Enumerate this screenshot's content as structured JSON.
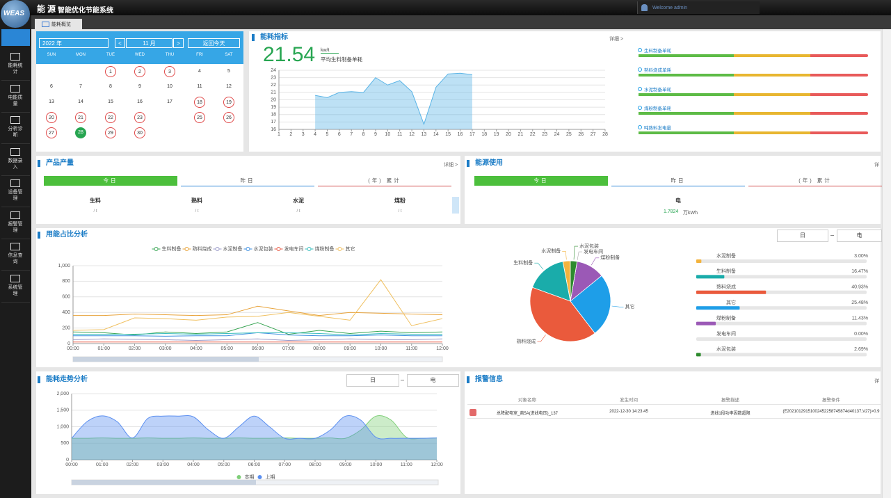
{
  "header": {
    "logo": "WEAS",
    "brand": "能源",
    "title": "智能优化节能系统",
    "welcome": "Welcome admin"
  },
  "menu": [
    "能耗统计",
    "电能质量",
    "分析诊断",
    "数据录入",
    "设备管理",
    "报警管理",
    "信息查询",
    "系统管理"
  ],
  "tab": "能耗概览",
  "calendar": {
    "year": "2022 年",
    "prev": "<",
    "month": "11 月",
    "next": ">",
    "today_button": "返回今天",
    "weekdays": [
      "SUN",
      "MON",
      "TUE",
      "WED",
      "THU",
      "FRI",
      "SAT"
    ],
    "weeks": [
      [
        null,
        null,
        {
          "label": "1",
          "ring": "#e04848"
        },
        {
          "label": "2",
          "ring": "#e04848"
        },
        {
          "label": "3",
          "ring": "#e04848"
        },
        {
          "label": "4"
        },
        {
          "label": "5"
        }
      ],
      [
        {
          "label": "6"
        },
        {
          "label": "7"
        },
        {
          "label": "8"
        },
        {
          "label": "9"
        },
        {
          "label": "10"
        },
        {
          "label": "11"
        },
        {
          "label": "12"
        }
      ],
      [
        {
          "label": "13"
        },
        {
          "label": "14"
        },
        {
          "label": "15"
        },
        {
          "label": "16"
        },
        {
          "label": "17"
        },
        {
          "label": "18",
          "ring": "#e04848"
        },
        {
          "label": "19",
          "ring": "#e04848"
        }
      ],
      [
        {
          "label": "20",
          "ring": "#e04848"
        },
        {
          "label": "21",
          "ring": "#e04848"
        },
        {
          "label": "22",
          "ring": "#e04848"
        },
        {
          "label": "23",
          "ring": "#e04848"
        },
        null,
        {
          "label": "25",
          "ring": "#e04848"
        },
        {
          "label": "26",
          "ring": "#e04848"
        }
      ],
      [
        {
          "label": "27",
          "ring": "#e04848"
        },
        {
          "label": "28",
          "fill": "#27a551"
        },
        {
          "label": "29",
          "ring": "#e04848"
        },
        {
          "label": "30",
          "ring": "#e04848"
        }
      ]
    ]
  },
  "energy_index": {
    "more": "详细 >",
    "value": 21.54,
    "unit": "kw/t",
    "label": "平均生料制备单耗",
    "indicators": [
      "生料制备单耗",
      "熟料烧成单耗",
      "水泥制备单耗",
      "煤粉制备单耗",
      "吨熟料发电量"
    ]
  },
  "production": {
    "title": "产品产量",
    "more": "详细 >",
    "tabs": [
      "今日",
      "昨日",
      "(年) 累计"
    ],
    "items": [
      {
        "name": "生料",
        "unit": "/ t"
      },
      {
        "name": "熟料",
        "unit": "/ t"
      },
      {
        "name": "水泥",
        "unit": "/ t"
      },
      {
        "name": "煤粉",
        "unit": "/ t"
      }
    ]
  },
  "energy_use": {
    "title": "能源使用",
    "more": "详",
    "tabs": [
      "今日",
      "昨日",
      "(年) 累计"
    ],
    "items": [
      {
        "name": "电",
        "value": 1.7824,
        "unit": "万kWh"
      }
    ]
  },
  "usage_controls": {
    "period": "日",
    "energy": "电"
  },
  "trend_controls": {
    "period": "日",
    "energy": "电"
  },
  "alarm": {
    "title": "报警信息",
    "more": "详",
    "columns": [
      "对象名称",
      "发生时间",
      "报警描述",
      "报警条件"
    ],
    "rows": [
      [
        "总降配电室_商5A(进线电压)_137",
        "2022-12-30 14:23:45",
        "进线1段功率因数超限",
        "(E20210129151002452258745874d40137,V27)>0.9"
      ]
    ]
  },
  "chart_data": [
    {
      "type": "area",
      "title": "能耗指标",
      "color": "#5ab4e6",
      "x": [
        4,
        5,
        6,
        7,
        8,
        9,
        10,
        11,
        12,
        13,
        14,
        15,
        16,
        17
      ],
      "values": [
        20.6,
        20.3,
        21.0,
        21.1,
        21.0,
        23.0,
        22.0,
        22.6,
        21.1,
        16.7,
        21.7,
        23.5,
        23.6,
        23.4
      ],
      "xlim": [
        1,
        28
      ],
      "xticks": [
        1,
        2,
        3,
        4,
        5,
        6,
        7,
        8,
        9,
        10,
        11,
        12,
        13,
        14,
        15,
        16,
        17,
        18,
        19,
        20,
        21,
        22,
        23,
        24,
        25,
        26,
        27,
        28
      ],
      "ylim": [
        16,
        24
      ],
      "yticks": [
        16,
        17,
        18,
        19,
        20,
        21,
        22,
        23,
        24
      ],
      "grid": true
    },
    {
      "type": "line",
      "title": "用能占比分析",
      "legend": "top",
      "grid": true,
      "x": [
        0,
        1,
        2,
        3,
        4,
        5,
        6,
        7,
        8,
        9,
        10,
        11,
        12
      ],
      "xlim": [
        0,
        12
      ],
      "xticks": [
        {
          "value": 0,
          "label": "00:00"
        },
        {
          "value": 1,
          "label": "01:00"
        },
        {
          "value": 2,
          "label": "02:00"
        },
        {
          "value": 3,
          "label": "03:00"
        },
        {
          "value": 4,
          "label": "04:00"
        },
        {
          "value": 5,
          "label": "05:00"
        },
        {
          "value": 6,
          "label": "06:00"
        },
        {
          "value": 7,
          "label": "07:00"
        },
        {
          "value": 8,
          "label": "08:00"
        },
        {
          "value": 9,
          "label": "09:00"
        },
        {
          "value": 10,
          "label": "10:00"
        },
        {
          "value": 11,
          "label": "11:00"
        },
        {
          "value": 12,
          "label": "12:00"
        }
      ],
      "ylim": [
        0,
        1000
      ],
      "yticks": [
        0,
        200,
        400,
        600,
        800,
        {
          "value": 1000,
          "label": "1,000"
        }
      ],
      "series": [
        {
          "name": "生料制备",
          "color": "#3aa655",
          "values": [
            150,
            140,
            110,
            150,
            130,
            150,
            270,
            120,
            170,
            130,
            160,
            140,
            150
          ]
        },
        {
          "name": "熟料烧成",
          "color": "#e8a33a",
          "values": [
            360,
            360,
            380,
            370,
            360,
            370,
            480,
            420,
            360,
            400,
            390,
            380,
            370
          ]
        },
        {
          "name": "水泥制备",
          "color": "#9a9ac8",
          "values": [
            50,
            60,
            55,
            50,
            40,
            50,
            60,
            40,
            50,
            60,
            50,
            50,
            60
          ]
        },
        {
          "name": "水泥包装",
          "color": "#3d8fe0",
          "values": [
            100,
            100,
            100,
            95,
            100,
            100,
            140,
            110,
            100,
            100,
            110,
            100,
            100
          ]
        },
        {
          "name": "发电车间",
          "color": "#e85a45",
          "values": [
            20,
            20,
            20,
            20,
            20,
            20,
            20,
            20,
            20,
            20,
            20,
            20,
            20
          ]
        },
        {
          "name": "煤粉制备",
          "color": "#38bdbd",
          "values": [
            120,
            120,
            120,
            130,
            120,
            130,
            140,
            140,
            130,
            110,
            130,
            120,
            120
          ]
        },
        {
          "name": "其它",
          "color": "#f0c060",
          "values": [
            170,
            180,
            330,
            320,
            300,
            340,
            350,
            400,
            350,
            300,
            820,
            230,
            320
          ]
        }
      ]
    },
    {
      "type": "pie",
      "categories": [
        "水泥制备",
        "生料制备",
        "熟料烧成",
        "其它",
        "煤粉制备",
        "发电车间",
        "水泥包装"
      ],
      "values": [
        3.0,
        16.47,
        40.93,
        25.48,
        11.43,
        0.0,
        2.69
      ],
      "value_labels": [
        "3.00%",
        "16.47%",
        "40.93%",
        "25.48%",
        "11.43%",
        "0.00%",
        "2.69%"
      ],
      "colors": [
        "#f3b33d",
        "#1aacaa",
        "#ea5a3c",
        "#1e9ee8",
        "#9b59b6",
        "#aaaaaa",
        "#2e8b2e"
      ]
    },
    {
      "type": "area",
      "title": "能耗走势分析",
      "legend": "bottom",
      "grid": true,
      "smooth": true,
      "x": [
        0,
        0.5,
        1,
        1.5,
        2,
        2.5,
        3,
        3.5,
        4,
        4.5,
        5,
        5.5,
        6,
        6.5,
        7,
        7.5,
        8,
        8.5,
        9,
        9.5,
        10,
        10.5,
        11,
        11.5,
        12
      ],
      "xlim": [
        0,
        12
      ],
      "xticks": [
        {
          "value": 0,
          "label": "00:00"
        },
        {
          "value": 1,
          "label": "01:00"
        },
        {
          "value": 2,
          "label": "02:00"
        },
        {
          "value": 3,
          "label": "03:00"
        },
        {
          "value": 4,
          "label": "04:00"
        },
        {
          "value": 5,
          "label": "05:00"
        },
        {
          "value": 6,
          "label": "06:00"
        },
        {
          "value": 7,
          "label": "07:00"
        },
        {
          "value": 8,
          "label": "08:00"
        },
        {
          "value": 9,
          "label": "09:00"
        },
        {
          "value": 10,
          "label": "10:00"
        },
        {
          "value": 11,
          "label": "11:00"
        },
        {
          "value": 12,
          "label": "12:00"
        }
      ],
      "ylim": [
        0,
        2000
      ],
      "yticks": [
        0,
        500,
        {
          "value": 1000,
          "label": "1,000"
        },
        {
          "value": 1500,
          "label": "1,500"
        },
        {
          "value": 2000,
          "label": "2,000"
        }
      ],
      "series": [
        {
          "name": "本期",
          "color": "#7fcf78",
          "values": [
            650,
            650,
            660,
            650,
            650,
            660,
            650,
            650,
            660,
            650,
            650,
            660,
            650,
            650,
            660,
            650,
            650,
            660,
            650,
            900,
            1320,
            1200,
            680,
            650,
            660
          ]
        },
        {
          "name": "上期",
          "color": "#5b8ff0",
          "values": [
            650,
            1150,
            1330,
            1150,
            660,
            1250,
            1320,
            1320,
            1300,
            900,
            650,
            1000,
            1320,
            1000,
            650,
            650,
            650,
            900,
            1320,
            1200,
            680,
            650,
            650,
            650,
            660
          ]
        }
      ]
    }
  ]
}
